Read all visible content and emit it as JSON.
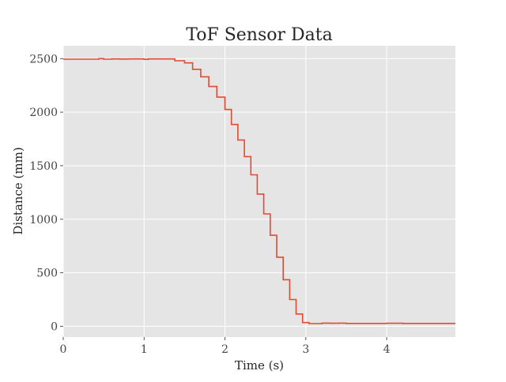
{
  "chart_data": {
    "type": "line",
    "title": "ToF Sensor Data",
    "xlabel": "Time (s)",
    "ylabel": "Distance (mm)",
    "xlim": [
      0,
      4.85
    ],
    "ylim": [
      -100,
      2620
    ],
    "xticks": [
      0,
      1,
      2,
      3,
      4
    ],
    "yticks": [
      0,
      500,
      1000,
      1500,
      2000,
      2500
    ],
    "grid": true,
    "background": "#e5e5e5",
    "grid_color": "#ffffff",
    "series": [
      {
        "color": "#e24a33",
        "x": [
          0,
          0.2,
          0.44,
          0.5,
          0.6,
          0.7,
          0.8,
          1.0,
          1.05,
          1.1,
          1.38,
          1.5,
          1.6,
          1.7,
          1.8,
          1.9,
          2.0,
          2.08,
          2.16,
          2.24,
          2.32,
          2.4,
          2.48,
          2.56,
          2.64,
          2.72,
          2.8,
          2.88,
          2.96,
          3.04,
          3.12,
          3.2,
          3.3,
          3.4,
          3.5,
          3.6,
          4.0,
          4.2,
          4.5,
          4.85
        ],
        "y": [
          2495,
          2495,
          2495,
          2500,
          2495,
          2497,
          2496,
          2497,
          2493,
          2497,
          2497,
          2480,
          2460,
          2400,
          2330,
          2240,
          2140,
          2025,
          1885,
          1740,
          1585,
          1415,
          1235,
          1050,
          850,
          645,
          435,
          250,
          115,
          35,
          25,
          25,
          30,
          28,
          30,
          27,
          27,
          28,
          27,
          27
        ],
        "step": "pre"
      }
    ]
  }
}
